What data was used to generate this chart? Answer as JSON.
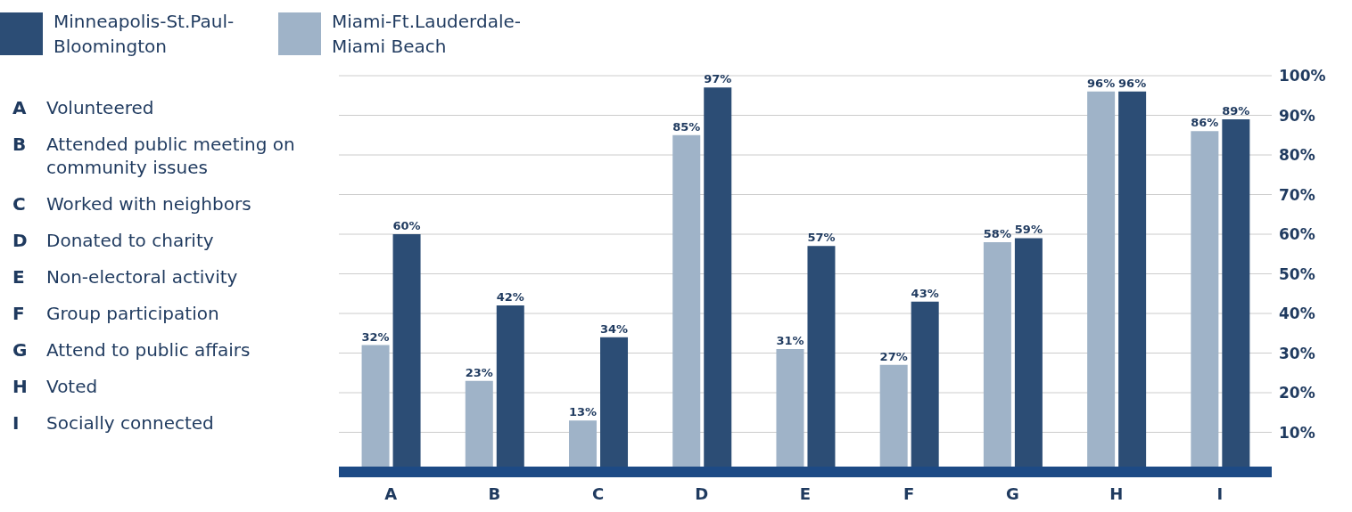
{
  "chart_data": {
    "type": "bar",
    "categories": [
      "A",
      "B",
      "C",
      "D",
      "E",
      "F",
      "G",
      "H",
      "I"
    ],
    "series": [
      {
        "name": "Miami-Ft.Lauderdale-Miami Beach",
        "color": "#9fb3c8",
        "values": [
          32,
          23,
          13,
          85,
          31,
          27,
          58,
          96,
          86
        ],
        "value_labels": [
          "32%",
          "23%",
          "13%",
          "85%",
          "31%",
          "27%",
          "58%",
          "96%",
          "86%"
        ]
      },
      {
        "name": "Minneapolis-St.Paul-Bloomington",
        "color": "#2c4d75",
        "values": [
          60,
          42,
          34,
          97,
          57,
          43,
          59,
          96,
          89
        ],
        "value_labels": [
          "60%",
          "42%",
          "34%",
          "97%",
          "57%",
          "43%",
          "59%",
          "96%",
          "89%"
        ]
      }
    ],
    "ylim": [
      0,
      100
    ],
    "yticks": [
      {
        "value": 10,
        "label": "10%"
      },
      {
        "value": 20,
        "label": "20%"
      },
      {
        "value": 30,
        "label": "30%"
      },
      {
        "value": 40,
        "label": "40%"
      },
      {
        "value": 50,
        "label": "50%"
      },
      {
        "value": 60,
        "label": "60%"
      },
      {
        "value": 70,
        "label": "70%"
      },
      {
        "value": 80,
        "label": "80%"
      },
      {
        "value": 90,
        "label": "90%"
      },
      {
        "value": 100,
        "label": "100%"
      }
    ],
    "grid": "y",
    "legend": "top left",
    "annotations": [
      "A Volunteered",
      "B Attended public meeting on community issues",
      "C Worked with neighbors",
      "D Donated to charity",
      "E Non-electoral activity",
      "F Group participation",
      "G Attend to public affairs",
      "H Voted",
      "I Socially connected"
    ]
  }
}
